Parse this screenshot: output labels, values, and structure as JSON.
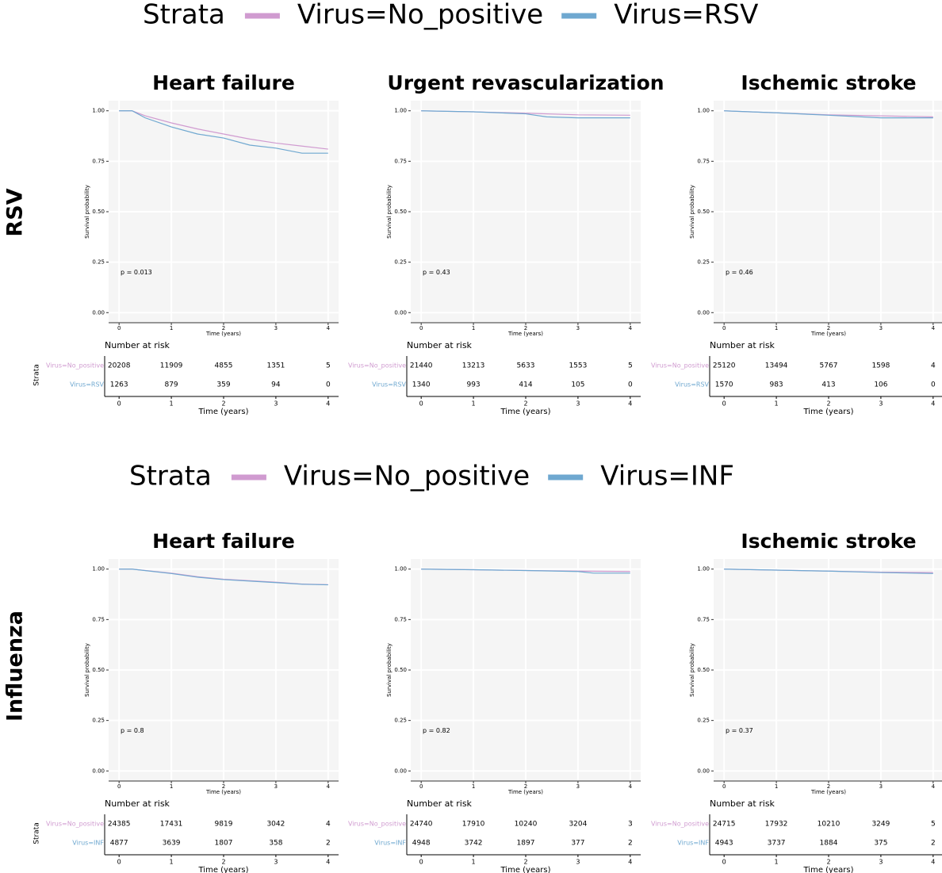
{
  "rows": [
    {
      "label": "RSV",
      "legend_title": "Strata"
    },
    {
      "label": "Influenza",
      "legend_title": "Strata"
    }
  ],
  "chart_data": [
    {
      "type": "line",
      "title": "Heart failure",
      "xlabel": "Time (years)",
      "ylabel": "Survival probability",
      "xlim": [
        -0.2,
        4.2
      ],
      "ylim": [
        -0.05,
        1.05
      ],
      "xticks": [
        0,
        1,
        2,
        3,
        4
      ],
      "yticks": [
        {
          "value": 0,
          "label": "0.00"
        },
        {
          "value": 0.25,
          "label": "0.25"
        },
        {
          "value": 0.5,
          "label": "0.50"
        },
        {
          "value": 0.75,
          "label": "0.75"
        },
        {
          "value": 1,
          "label": "1.00"
        }
      ],
      "grid": true,
      "annotation": "p = 0.013",
      "risk_title": "Number at risk",
      "risk_xlabel": "Time (years)",
      "risk_ylabel": "Strata",
      "series": [
        {
          "name": "Virus=No_positive",
          "color": "#d09bd0",
          "x": [
            0,
            0.25,
            0.5,
            1,
            1.5,
            2,
            2.5,
            3,
            3.5,
            4
          ],
          "values": [
            1,
            1,
            0.975,
            0.94,
            0.91,
            0.885,
            0.86,
            0.84,
            0.825,
            0.81
          ],
          "at_risk": [
            20208,
            11909,
            4855,
            1351,
            5
          ]
        },
        {
          "name": "Virus=RSV",
          "color": "#6fa8d0",
          "x": [
            0,
            0.25,
            0.5,
            1,
            1.5,
            2,
            2.5,
            3,
            3.5,
            4
          ],
          "values": [
            1,
            1,
            0.965,
            0.92,
            0.885,
            0.865,
            0.83,
            0.815,
            0.79,
            0.79
          ],
          "at_risk": [
            1263,
            879,
            359,
            94,
            0
          ]
        }
      ]
    },
    {
      "type": "line",
      "title": "Urgent revascularization",
      "xlabel": "Time (years)",
      "ylabel": "Survival probability",
      "xlim": [
        -0.2,
        4.2
      ],
      "ylim": [
        -0.05,
        1.05
      ],
      "xticks": [
        0,
        1,
        2,
        3,
        4
      ],
      "yticks": [
        {
          "value": 0,
          "label": "0.00"
        },
        {
          "value": 0.25,
          "label": "0.25"
        },
        {
          "value": 0.5,
          "label": "0.50"
        },
        {
          "value": 0.75,
          "label": "0.75"
        },
        {
          "value": 1,
          "label": "1.00"
        }
      ],
      "grid": true,
      "annotation": "p = 0.43",
      "risk_title": "Number at risk",
      "risk_xlabel": "Time (years)",
      "series": [
        {
          "name": "Virus=No_positive",
          "color": "#d09bd0",
          "x": [
            0,
            1,
            2,
            3,
            4
          ],
          "values": [
            1,
            0.995,
            0.988,
            0.98,
            0.978
          ],
          "at_risk": [
            21440,
            13213,
            5633,
            1553,
            5
          ]
        },
        {
          "name": "Virus=RSV",
          "color": "#6fa8d0",
          "x": [
            0,
            1,
            2,
            2.4,
            3,
            4
          ],
          "values": [
            1,
            0.995,
            0.985,
            0.97,
            0.965,
            0.965
          ],
          "at_risk": [
            1340,
            993,
            414,
            105,
            0
          ]
        }
      ]
    },
    {
      "type": "line",
      "title": "Ischemic stroke",
      "xlabel": "Time (years)",
      "ylabel": "Survival probability",
      "xlim": [
        -0.2,
        4.2
      ],
      "ylim": [
        -0.05,
        1.05
      ],
      "xticks": [
        0,
        1,
        2,
        3,
        4
      ],
      "yticks": [
        {
          "value": 0,
          "label": "0.00"
        },
        {
          "value": 0.25,
          "label": "0.25"
        },
        {
          "value": 0.5,
          "label": "0.50"
        },
        {
          "value": 0.75,
          "label": "0.75"
        },
        {
          "value": 1,
          "label": "1.00"
        }
      ],
      "grid": true,
      "annotation": "p = 0.46",
      "risk_title": "Number at risk",
      "risk_xlabel": "Time (years)",
      "series": [
        {
          "name": "Virus=No_positive",
          "color": "#d09bd0",
          "x": [
            0,
            1,
            2,
            3,
            4
          ],
          "values": [
            1,
            0.99,
            0.98,
            0.975,
            0.97
          ],
          "at_risk": [
            25120,
            13494,
            5767,
            1598,
            4
          ]
        },
        {
          "name": "Virus=RSV",
          "color": "#6fa8d0",
          "x": [
            0,
            1,
            2,
            3,
            4
          ],
          "values": [
            1,
            0.99,
            0.978,
            0.965,
            0.965
          ],
          "at_risk": [
            1570,
            983,
            413,
            106,
            0
          ]
        }
      ]
    },
    {
      "type": "line",
      "title": "Heart failure",
      "xlabel": "Time (years)",
      "ylabel": "Survival probability",
      "xlim": [
        -0.2,
        4.2
      ],
      "ylim": [
        -0.05,
        1.05
      ],
      "xticks": [
        0,
        1,
        2,
        3,
        4
      ],
      "yticks": [
        {
          "value": 0,
          "label": "0.00"
        },
        {
          "value": 0.25,
          "label": "0.25"
        },
        {
          "value": 0.5,
          "label": "0.50"
        },
        {
          "value": 0.75,
          "label": "0.75"
        },
        {
          "value": 1,
          "label": "1.00"
        }
      ],
      "grid": true,
      "annotation": "p = 0.8",
      "risk_title": "Number at risk",
      "risk_xlabel": "Time (years)",
      "risk_ylabel": "Strata",
      "series": [
        {
          "name": "Virus=No_positive",
          "color": "#d09bd0",
          "x": [
            0,
            0.25,
            1,
            1.5,
            2,
            3,
            3.5,
            4
          ],
          "values": [
            1,
            1,
            0.98,
            0.962,
            0.95,
            0.935,
            0.926,
            0.923
          ],
          "at_risk": [
            24385,
            17431,
            9819,
            3042,
            4
          ]
        },
        {
          "name": "Virus=INF",
          "color": "#6fa8d0",
          "x": [
            0,
            0.25,
            1,
            1.5,
            2,
            3,
            3.5,
            4
          ],
          "values": [
            1,
            1,
            0.978,
            0.96,
            0.948,
            0.933,
            0.925,
            0.922
          ],
          "at_risk": [
            4877,
            3639,
            1807,
            358,
            2
          ]
        }
      ]
    },
    {
      "type": "line",
      "xlabel": "Time (years)",
      "ylabel": "Survival probability",
      "xlim": [
        -0.2,
        4.2
      ],
      "ylim": [
        -0.05,
        1.05
      ],
      "xticks": [
        0,
        1,
        2,
        3,
        4
      ],
      "yticks": [
        {
          "value": 0,
          "label": "0.00"
        },
        {
          "value": 0.25,
          "label": "0.25"
        },
        {
          "value": 0.5,
          "label": "0.50"
        },
        {
          "value": 0.75,
          "label": "0.75"
        },
        {
          "value": 1,
          "label": "1.00"
        }
      ],
      "grid": true,
      "annotation": "p = 0.82",
      "risk_title": "Number at risk",
      "risk_xlabel": "Time (years)",
      "series": [
        {
          "name": "Virus=No_positive",
          "color": "#d09bd0",
          "x": [
            0,
            1,
            2,
            3,
            4
          ],
          "values": [
            1,
            0.997,
            0.993,
            0.99,
            0.988
          ],
          "at_risk": [
            24740,
            17910,
            10240,
            3204,
            3
          ]
        },
        {
          "name": "Virus=INF",
          "color": "#6fa8d0",
          "x": [
            0,
            1,
            2,
            3,
            3.3,
            4
          ],
          "values": [
            1,
            0.997,
            0.993,
            0.988,
            0.98,
            0.98
          ],
          "at_risk": [
            4948,
            3742,
            1897,
            377,
            2
          ]
        }
      ]
    },
    {
      "type": "line",
      "title": "Ischemic stroke",
      "xlabel": "Time (years)",
      "ylabel": "Survival probability",
      "xlim": [
        -0.2,
        4.2
      ],
      "ylim": [
        -0.05,
        1.05
      ],
      "xticks": [
        0,
        1,
        2,
        3,
        4
      ],
      "yticks": [
        {
          "value": 0,
          "label": "0.00"
        },
        {
          "value": 0.25,
          "label": "0.25"
        },
        {
          "value": 0.5,
          "label": "0.50"
        },
        {
          "value": 0.75,
          "label": "0.75"
        },
        {
          "value": 1,
          "label": "1.00"
        }
      ],
      "grid": true,
      "annotation": "p = 0.37",
      "risk_title": "Number at risk",
      "risk_xlabel": "Time (years)",
      "series": [
        {
          "name": "Virus=No_positive",
          "color": "#d09bd0",
          "x": [
            0,
            1,
            2,
            3,
            4
          ],
          "values": [
            1,
            0.995,
            0.99,
            0.985,
            0.983
          ],
          "at_risk": [
            24715,
            17932,
            10210,
            3249,
            5
          ]
        },
        {
          "name": "Virus=INF",
          "color": "#6fa8d0",
          "x": [
            0,
            1,
            2,
            3,
            4
          ],
          "values": [
            1,
            0.995,
            0.99,
            0.983,
            0.978
          ],
          "at_risk": [
            4943,
            3737,
            1884,
            375,
            2
          ]
        }
      ]
    }
  ]
}
